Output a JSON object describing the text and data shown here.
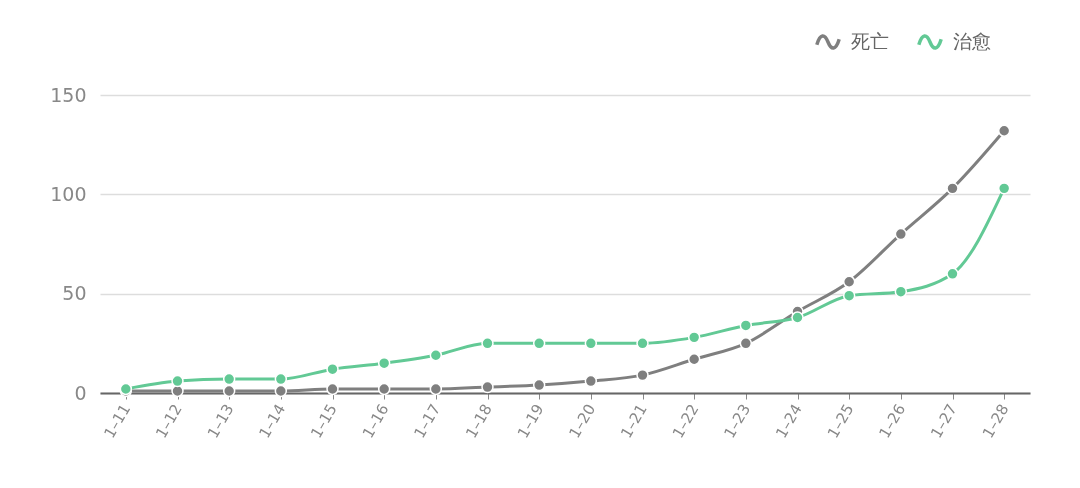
{
  "chart_data": {
    "type": "line",
    "categories": [
      "1–11",
      "1–12",
      "1–13",
      "1–14",
      "1–15",
      "1–16",
      "1–17",
      "1–18",
      "1–19",
      "1–20",
      "1–21",
      "1–22",
      "1–23",
      "1–24",
      "1–25",
      "1–26",
      "1–27",
      "1–28"
    ],
    "series": [
      {
        "name": "死亡",
        "color": "#7f7f7f",
        "values": [
          1,
          1,
          1,
          1,
          2,
          2,
          2,
          3,
          4,
          6,
          9,
          17,
          25,
          41,
          56,
          80,
          103,
          132
        ]
      },
      {
        "name": "治愈",
        "color": "#62c995",
        "values": [
          2,
          6,
          7,
          7,
          12,
          15,
          19,
          25,
          25,
          25,
          25,
          28,
          34,
          38,
          49,
          51,
          60,
          103
        ]
      }
    ],
    "ylim": [
      0,
      150
    ],
    "yticks": [
      0,
      50,
      100,
      150
    ],
    "grid": "y",
    "legend": "top right",
    "marker": "circle",
    "line_style": "solid"
  }
}
